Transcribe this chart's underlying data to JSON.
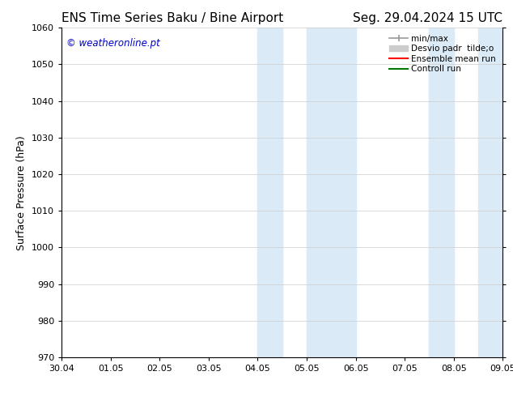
{
  "title_left": "ENS Time Series Baku / Bine Airport",
  "title_right": "Seg. 29.04.2024 15 UTC",
  "ylabel": "Surface Pressure (hPa)",
  "ylim": [
    970,
    1060
  ],
  "yticks": [
    970,
    980,
    990,
    1000,
    1010,
    1020,
    1030,
    1040,
    1050,
    1060
  ],
  "xtick_labels": [
    "30.04",
    "01.05",
    "02.05",
    "03.05",
    "04.05",
    "05.05",
    "06.05",
    "07.05",
    "08.05",
    "09.05"
  ],
  "shaded_regions": [
    {
      "xstart": 4.0,
      "xend": 4.5,
      "color": "#daeaf7"
    },
    {
      "xstart": 5.0,
      "xend": 6.0,
      "color": "#daeaf7"
    },
    {
      "xstart": 7.5,
      "xend": 8.0,
      "color": "#daeaf7"
    },
    {
      "xstart": 8.5,
      "xend": 9.0,
      "color": "#daeaf7"
    }
  ],
  "watermark": "© weatheronline.pt",
  "watermark_color": "#0000cc",
  "title_fontsize": 11,
  "tick_fontsize": 8,
  "ylabel_fontsize": 9,
  "background_color": "#ffffff",
  "grid_color": "#cccccc",
  "legend_minmax_color": "#999999",
  "legend_desvio_color": "#cccccc",
  "legend_ensemble_color": "#ff0000",
  "legend_control_color": "#007700"
}
